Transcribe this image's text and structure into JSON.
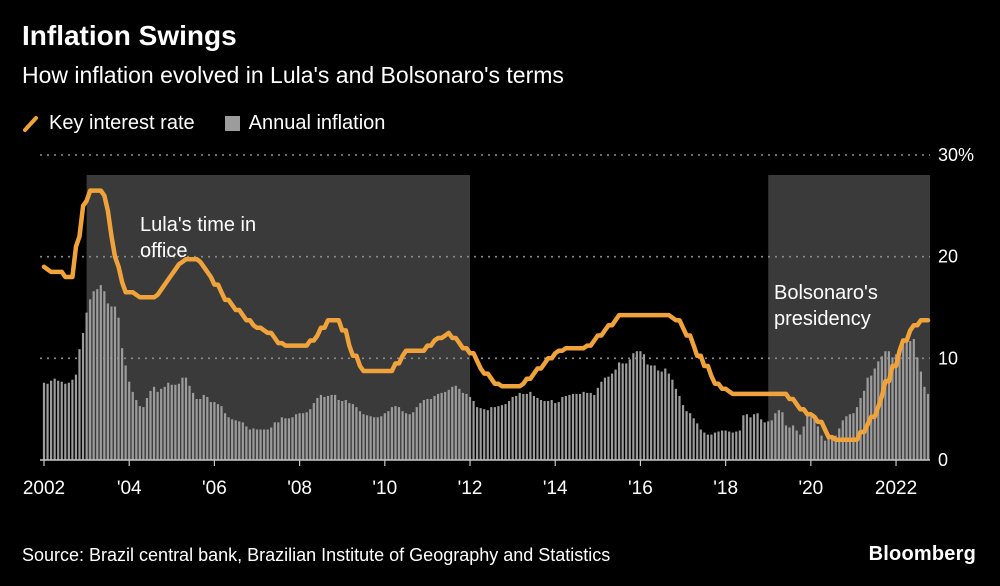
{
  "header": {
    "title": "Inflation Swings",
    "subtitle": "How inflation evolved in Lula's and Bolsonaro's terms"
  },
  "legend": [
    {
      "label": "Key interest rate",
      "type": "line",
      "color": "#F1A33B"
    },
    {
      "label": "Annual inflation",
      "type": "bar",
      "color": "#9C9C9C"
    }
  ],
  "source": "Source: Brazil central bank, Brazilian Institute of Geography and Statistics",
  "brand": "Bloomberg",
  "chart_data": {
    "type": "bar+line",
    "title": "Inflation Swings",
    "subtitle": "How inflation evolved in Lula's and Bolsonaro's terms",
    "x_unit": "month",
    "start_year": 2002,
    "x_range": [
      2002,
      2022.83
    ],
    "ylim": [
      0,
      30
    ],
    "grid": "dotted-horizontal",
    "legend_position": "top-left",
    "region_color": "#3A3A3A",
    "grid_color": "#8A8A8A",
    "baseline_color": "#C8C8C8",
    "background_color": "#000000",
    "yticks": [
      {
        "value": 0,
        "label": "0"
      },
      {
        "value": 10,
        "label": "10"
      },
      {
        "value": 20,
        "label": "20"
      },
      {
        "value": 30,
        "label": "30%"
      }
    ],
    "xticks": [
      {
        "year": 2002,
        "label": "2002"
      },
      {
        "year": 2004,
        "label": "'04"
      },
      {
        "year": 2006,
        "label": "'06"
      },
      {
        "year": 2008,
        "label": "'08"
      },
      {
        "year": 2010,
        "label": "'10"
      },
      {
        "year": 2012,
        "label": "'12"
      },
      {
        "year": 2014,
        "label": "'14"
      },
      {
        "year": 2016,
        "label": "'16"
      },
      {
        "year": 2018,
        "label": "'18"
      },
      {
        "year": 2020,
        "label": "'20"
      },
      {
        "year": 2022,
        "label": "2022"
      }
    ],
    "regions": [
      {
        "label": "Lula's time in\noffice",
        "start": 2003,
        "end": 2012
      },
      {
        "label": "Bolsonaro's\npresidency",
        "start": 2019,
        "end": 2022.83
      }
    ],
    "series": [
      {
        "name": "Key interest rate",
        "type": "line",
        "color": "#F1A33B",
        "values_by_year": [
          [
            19,
            18.75,
            18.5,
            18.5,
            18.5,
            18.5,
            18,
            18,
            18,
            21,
            22,
            25
          ],
          [
            25.5,
            26.5,
            26.5,
            26.5,
            26.5,
            26,
            24.5,
            22,
            20,
            19,
            17.5,
            16.5
          ],
          [
            16.5,
            16.5,
            16.25,
            16,
            16,
            16,
            16,
            16,
            16.25,
            16.75,
            17.25,
            17.75
          ],
          [
            18.25,
            18.75,
            19.25,
            19.5,
            19.75,
            19.75,
            19.75,
            19.75,
            19.5,
            19,
            18.5,
            18
          ],
          [
            17.25,
            17.25,
            16.5,
            15.75,
            15.75,
            15.25,
            14.75,
            14.75,
            14.25,
            13.75,
            13.75,
            13.25
          ],
          [
            13,
            13,
            12.75,
            12.5,
            12.5,
            12,
            11.5,
            11.5,
            11.25,
            11.25,
            11.25,
            11.25
          ],
          [
            11.25,
            11.25,
            11.25,
            11.75,
            11.75,
            12.25,
            13,
            13,
            13.75,
            13.75,
            13.75,
            13.75
          ],
          [
            12.75,
            12.75,
            11.25,
            10.25,
            10.25,
            9.25,
            8.75,
            8.75,
            8.75,
            8.75,
            8.75,
            8.75
          ],
          [
            8.75,
            8.75,
            8.75,
            9.5,
            9.5,
            10.25,
            10.75,
            10.75,
            10.75,
            10.75,
            10.75,
            10.75
          ],
          [
            11.25,
            11.25,
            11.75,
            12,
            12,
            12.25,
            12.5,
            12,
            12,
            11.5,
            11,
            11
          ],
          [
            10.5,
            10.5,
            9.75,
            9,
            8.5,
            8.5,
            8,
            7.5,
            7.5,
            7.25,
            7.25,
            7.25
          ],
          [
            7.25,
            7.25,
            7.25,
            7.5,
            8,
            8,
            8.5,
            9,
            9,
            9.5,
            10,
            10
          ],
          [
            10.5,
            10.75,
            10.75,
            11,
            11,
            11,
            11,
            11,
            11,
            11.25,
            11.25,
            11.75
          ],
          [
            12.25,
            12.25,
            12.75,
            13.25,
            13.25,
            13.75,
            14.25,
            14.25,
            14.25,
            14.25,
            14.25,
            14.25
          ],
          [
            14.25,
            14.25,
            14.25,
            14.25,
            14.25,
            14.25,
            14.25,
            14.25,
            14.25,
            14,
            13.75,
            13.75
          ],
          [
            13,
            12.25,
            12.25,
            11.25,
            10.25,
            10.25,
            9.25,
            9.25,
            8.25,
            7.5,
            7.5,
            7
          ],
          [
            7,
            6.75,
            6.5,
            6.5,
            6.5,
            6.5,
            6.5,
            6.5,
            6.5,
            6.5,
            6.5,
            6.5
          ],
          [
            6.5,
            6.5,
            6.5,
            6.5,
            6.5,
            6.5,
            6,
            6,
            5.5,
            5,
            5,
            4.5
          ],
          [
            4.5,
            4.25,
            3.75,
            3.75,
            3,
            2.25,
            2.25,
            2,
            2,
            2,
            2,
            2
          ],
          [
            2,
            2,
            2.75,
            2.75,
            3.5,
            4.25,
            4.25,
            5.25,
            6.25,
            7.75,
            7.75,
            9.25
          ],
          [
            9.25,
            10.75,
            11.75,
            11.75,
            12.75,
            13.25,
            13.25,
            13.75,
            13.75,
            13.75
          ]
        ]
      },
      {
        "name": "Annual inflation",
        "type": "bar",
        "color": "#9C9C9C",
        "values_by_year": [
          [
            7.6,
            7.5,
            7.8,
            8,
            7.8,
            7.7,
            7.5,
            7.6,
            7.9,
            8.4,
            10.9,
            12.5
          ],
          [
            14.5,
            15.8,
            16.6,
            16.8,
            17.2,
            16.6,
            15.4,
            15.1,
            15.1,
            14,
            11,
            9.3
          ],
          [
            7.7,
            6.7,
            5.9,
            5.3,
            5.2,
            6.1,
            6.8,
            7.2,
            6.7,
            7,
            7.2,
            7.6
          ],
          [
            7.4,
            7.4,
            7.5,
            8.1,
            8.1,
            7.3,
            6.6,
            6,
            6,
            6.4,
            6.2,
            5.7
          ],
          [
            5.7,
            5.5,
            5.3,
            4.6,
            4.2,
            4,
            3.9,
            3.8,
            3.7,
            3.3,
            3,
            3.1
          ],
          [
            3,
            3,
            3,
            3,
            3.2,
            3.7,
            3.7,
            4.2,
            4.1,
            4.1,
            4.2,
            4.5
          ],
          [
            4.6,
            4.6,
            4.7,
            5,
            5.6,
            6.1,
            6.4,
            6.2,
            6.3,
            6.4,
            6.4,
            5.9
          ],
          [
            5.8,
            5.9,
            5.6,
            5.5,
            5.2,
            4.8,
            4.5,
            4.4,
            4.3,
            4.2,
            4.2,
            4.3
          ],
          [
            4.6,
            4.8,
            5.2,
            5.3,
            5.2,
            4.8,
            4.6,
            4.5,
            4.7,
            5.2,
            5.6,
            5.9
          ],
          [
            6,
            6,
            6.3,
            6.5,
            6.6,
            6.7,
            6.9,
            7.2,
            7.3,
            7,
            6.6,
            6.5
          ],
          [
            6.2,
            5.8,
            5.2,
            5.1,
            5,
            4.9,
            5.2,
            5.2,
            5.3,
            5.4,
            5.5,
            5.8
          ],
          [
            6.2,
            6.3,
            6.6,
            6.5,
            6.5,
            6.7,
            6.3,
            6.1,
            5.9,
            5.8,
            5.8,
            5.9
          ],
          [
            5.6,
            5.7,
            6.2,
            6.3,
            6.4,
            6.5,
            6.5,
            6.5,
            6.7,
            6.6,
            6.6,
            6.4
          ],
          [
            7.1,
            7.7,
            8.1,
            8.2,
            8.5,
            8.9,
            9.6,
            9.5,
            9.5,
            9.9,
            10.5,
            10.7
          ],
          [
            10.7,
            10.4,
            9.4,
            9.3,
            9.3,
            8.8,
            8.7,
            9,
            8.5,
            7.9,
            7,
            6.3
          ],
          [
            5.4,
            4.8,
            4.6,
            4.1,
            3.6,
            3,
            2.7,
            2.5,
            2.5,
            2.7,
            2.8,
            2.9
          ],
          [
            2.9,
            2.8,
            2.7,
            2.8,
            2.9,
            4.4,
            4.5,
            4.2,
            4.5,
            4.6,
            4,
            3.7
          ],
          [
            3.8,
            3.9,
            4.6,
            4.9,
            4.7,
            3.4,
            3.2,
            3.4,
            2.9,
            2.5,
            3.3,
            4.3
          ],
          [
            4.2,
            4,
            3.3,
            2.4,
            1.9,
            2.1,
            2.3,
            2.4,
            3.1,
            3.9,
            4.3,
            4.5
          ],
          [
            4.6,
            5.2,
            6.1,
            6.8,
            8.1,
            8.3,
            9,
            9.7,
            10.2,
            10.7,
            10.7,
            10.1
          ],
          [
            10.4,
            10.5,
            11.3,
            12.1,
            11.7,
            11.9,
            10.1,
            8.7,
            7.2,
            6.5
          ]
        ]
      }
    ]
  }
}
